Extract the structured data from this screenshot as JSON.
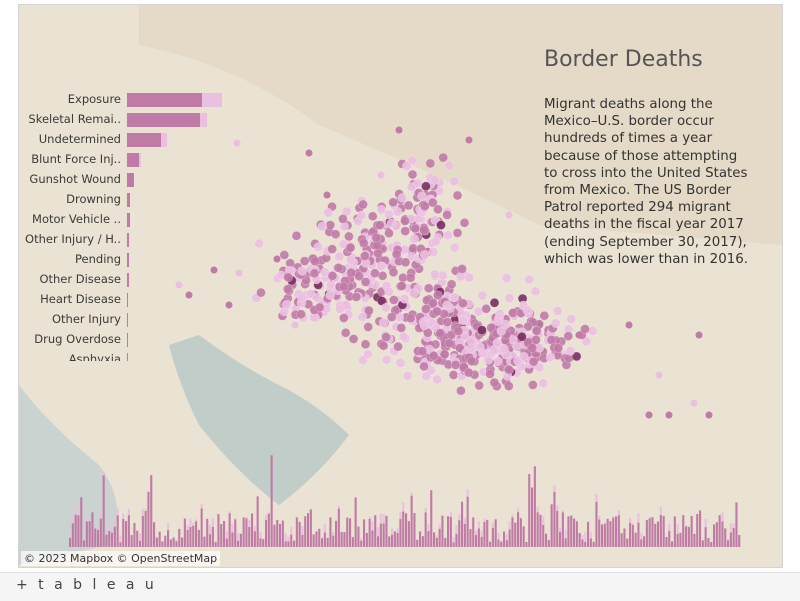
{
  "title": "Border Deaths",
  "description": "Migrant deaths along the Mexico–U.S. border occur hundreds of times a year because of those attempting to cross into the United States from Mexico. The US Border Patrol reported 294 migrant deaths in the fiscal year 2017 (ending September 30, 2017), which was lower than in 2016.",
  "attribution": "© 2023 Mapbox  © OpenStreetMap",
  "footer": {
    "logo": "+ t a b l e a u"
  },
  "colors": {
    "primary": "#c07aa6",
    "secondary": "#ebbfe0",
    "dark": "#7a2e63"
  },
  "chart_data": [
    {
      "type": "bar",
      "orientation": "horizontal",
      "categories": [
        "Exposure",
        "Skeletal Remai..",
        "Undetermined",
        "Blunt Force Inj..",
        "Gunshot Wound",
        "Drowning",
        "Motor Vehicle ..",
        "Other Injury / H..",
        "Pending",
        "Other Disease",
        "Heart Disease",
        "Other Injury",
        "Drug Overdose",
        "Asphyxia"
      ],
      "series": [
        {
          "values": [
            75,
            73,
            34,
            12,
            7,
            3,
            3,
            2,
            2,
            1.5,
            1,
            1,
            1,
            0.5
          ]
        },
        {
          "values": [
            20,
            7,
            6,
            2,
            0,
            0,
            0,
            0,
            0,
            0,
            0,
            0,
            0,
            0
          ]
        }
      ],
      "xlim": [
        0,
        110
      ]
    },
    {
      "type": "scatter",
      "description_of_layer": "map points",
      "clusters": [
        {
          "center": [
            300,
            280
          ],
          "count": 120,
          "spread": [
            45,
            30
          ]
        },
        {
          "center": [
            360,
            240
          ],
          "count": 150,
          "spread": [
            60,
            40
          ]
        },
        {
          "center": [
            420,
            320
          ],
          "count": 200,
          "spread": [
            70,
            45
          ]
        },
        {
          "center": [
            470,
            340
          ],
          "count": 180,
          "spread": [
            60,
            40
          ]
        },
        {
          "center": [
            520,
            340
          ],
          "count": 60,
          "spread": [
            40,
            25
          ]
        },
        {
          "center": [
            400,
            200
          ],
          "count": 60,
          "spread": [
            30,
            40
          ]
        }
      ]
    },
    {
      "type": "bar",
      "orientation": "vertical",
      "count": 240,
      "ylim": [
        0,
        120
      ]
    }
  ]
}
